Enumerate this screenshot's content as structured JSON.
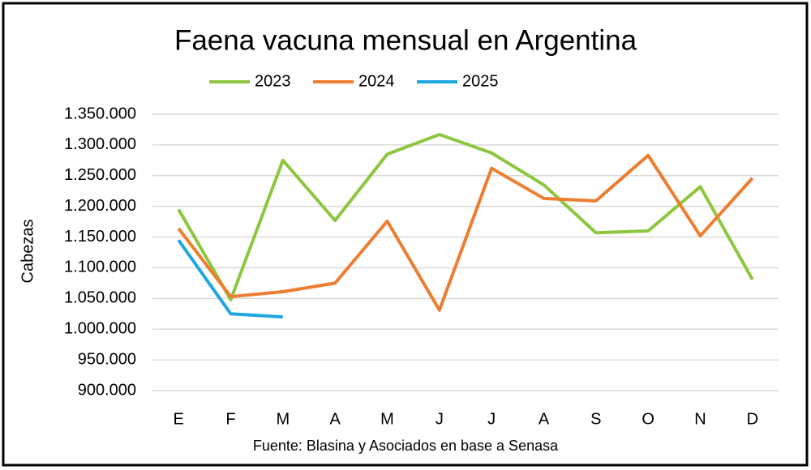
{
  "chart_data": {
    "type": "line",
    "title": "Faena vacuna mensual en Argentina",
    "y_label": "Cabezas",
    "source": "Fuente: Blasina y Asociados en base a Senasa",
    "categories": [
      "E",
      "F",
      "M",
      "A",
      "M",
      "J",
      "J",
      "A",
      "S",
      "O",
      "N",
      "D"
    ],
    "series": [
      {
        "name": "2023",
        "color": "#8dc63f",
        "values": [
          1195000,
          1048000,
          1275000,
          1177000,
          1285000,
          1317000,
          1287000,
          1235000,
          1157000,
          1160000,
          1232000,
          1081000
        ]
      },
      {
        "name": "2024",
        "color": "#ed7d31",
        "values": [
          1164000,
          1053000,
          1061000,
          1075000,
          1176000,
          1031000,
          1262000,
          1213000,
          1209000,
          1283000,
          1152000,
          1246000
        ]
      },
      {
        "name": "2025",
        "color": "#1ea7e1",
        "values": [
          1145000,
          1025000,
          1020000,
          null,
          null,
          null,
          null,
          null,
          null,
          null,
          null,
          null
        ]
      }
    ],
    "ylim": [
      900000,
      1350000
    ],
    "yticks": [
      {
        "value": 900000,
        "label": "900.000"
      },
      {
        "value": 950000,
        "label": "950.000"
      },
      {
        "value": 1000000,
        "label": "1.000.000"
      },
      {
        "value": 1050000,
        "label": "1.050.000"
      },
      {
        "value": 1100000,
        "label": "1.100.000"
      },
      {
        "value": 1150000,
        "label": "1.150.000"
      },
      {
        "value": 1200000,
        "label": "1.200.000"
      },
      {
        "value": 1250000,
        "label": "1.250.000"
      },
      {
        "value": 1300000,
        "label": "1.300.000"
      },
      {
        "value": 1350000,
        "label": "1.350.000"
      }
    ],
    "grid": true,
    "legend": "top"
  }
}
